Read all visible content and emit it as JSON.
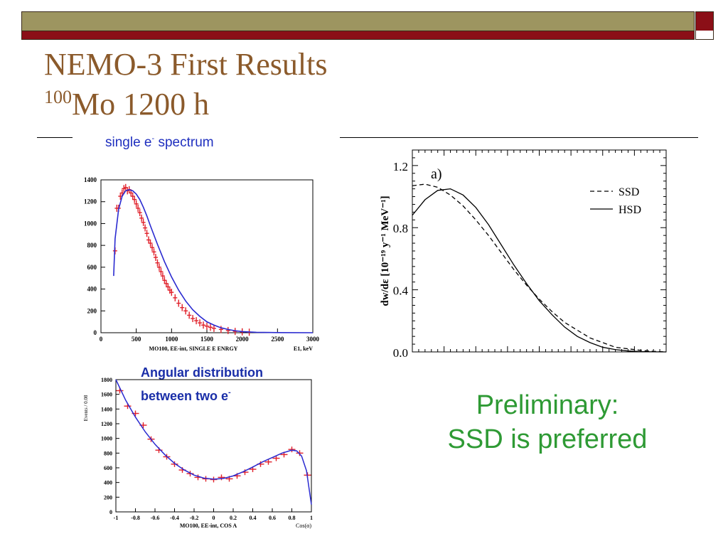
{
  "slide": {
    "title_line1": "NEMO-3 First Results",
    "title_sup": "100",
    "title_line2_rest": "Mo 1200 h",
    "label_single": "single e",
    "label_single_sup": "-",
    "label_single_rest": " spectrum",
    "label_angular_line1": "Angular distribution",
    "label_angular_line2": "between two e",
    "label_angular_sup": "-",
    "preliminary_line1": "Preliminary:",
    "preliminary_line2": "SSD is preferred",
    "colors": {
      "title": "#8b5a2b",
      "bar_olive": "#9d9560",
      "bar_red": "#8b0f17",
      "blue_label": "#1f2fbf",
      "green": "#2e9a34"
    }
  },
  "chart_data": [
    {
      "type": "scatter",
      "name": "single-electron-energy",
      "xlabel": "MO100, EE-int, SINGLE E ENRGY",
      "xlabel_right": "E1, keV",
      "xlim": [
        0,
        3000
      ],
      "ylim": [
        0,
        1400
      ],
      "xticks": [
        0,
        500,
        1000,
        1500,
        2000,
        2500,
        3000
      ],
      "yticks": [
        0,
        200,
        400,
        600,
        800,
        1000,
        1200,
        1400
      ],
      "data_points": {
        "x": [
          200,
          225,
          250,
          275,
          300,
          325,
          350,
          375,
          400,
          425,
          450,
          475,
          500,
          525,
          550,
          575,
          600,
          625,
          650,
          675,
          700,
          725,
          750,
          775,
          800,
          825,
          850,
          875,
          900,
          925,
          950,
          975,
          1000,
          1050,
          1100,
          1150,
          1200,
          1250,
          1300,
          1350,
          1400,
          1450,
          1500,
          1550,
          1600,
          1700,
          1800,
          1900,
          2000,
          2100
        ],
        "y": [
          750,
          1140,
          1140,
          1250,
          1280,
          1320,
          1330,
          1300,
          1310,
          1280,
          1250,
          1220,
          1180,
          1140,
          1100,
          1050,
          1010,
          960,
          910,
          850,
          820,
          780,
          740,
          690,
          640,
          600,
          560,
          520,
          480,
          450,
          420,
          390,
          370,
          320,
          270,
          230,
          200,
          160,
          130,
          110,
          90,
          70,
          60,
          50,
          40,
          30,
          20,
          12,
          8,
          5
        ]
      },
      "model_curve": {
        "x": [
          180,
          200,
          250,
          300,
          350,
          400,
          450,
          500,
          550,
          600,
          650,
          700,
          800,
          900,
          1000,
          1100,
          1200,
          1300,
          1400,
          1500,
          1600,
          1700,
          1800,
          1900,
          2000,
          2200,
          2500,
          3000
        ],
        "y": [
          520,
          860,
          1130,
          1250,
          1300,
          1310,
          1300,
          1270,
          1220,
          1150,
          1070,
          980,
          810,
          650,
          510,
          390,
          290,
          210,
          150,
          100,
          70,
          45,
          30,
          18,
          10,
          4,
          1,
          0
        ]
      }
    },
    {
      "type": "scatter",
      "name": "angular-distribution",
      "xlabel": "MO100, EE-int, COS A",
      "xlabel_right": "Cos(α)",
      "ylabel": "Events / 0.08",
      "xlim": [
        -1,
        1
      ],
      "ylim": [
        0,
        1800
      ],
      "xticks": [
        -1,
        -0.8,
        -0.6,
        -0.4,
        -0.2,
        0,
        0.2,
        0.4,
        0.6,
        0.8,
        1
      ],
      "yticks": [
        0,
        200,
        400,
        600,
        800,
        1000,
        1200,
        1400,
        1600,
        1800
      ],
      "data_points": {
        "x": [
          -0.96,
          -0.88,
          -0.8,
          -0.72,
          -0.64,
          -0.56,
          -0.48,
          -0.4,
          -0.32,
          -0.24,
          -0.16,
          -0.08,
          0.0,
          0.08,
          0.16,
          0.24,
          0.32,
          0.4,
          0.48,
          0.56,
          0.64,
          0.72,
          0.8,
          0.88,
          0.96
        ],
        "y": [
          1650,
          1440,
          1340,
          1180,
          990,
          840,
          750,
          650,
          570,
          520,
          470,
          450,
          440,
          470,
          450,
          490,
          540,
          580,
          650,
          680,
          730,
          780,
          850,
          800,
          500
        ]
      },
      "model_curve": {
        "x": [
          -1,
          -0.9,
          -0.8,
          -0.7,
          -0.6,
          -0.5,
          -0.4,
          -0.3,
          -0.2,
          -0.1,
          0.0,
          0.1,
          0.2,
          0.3,
          0.4,
          0.5,
          0.6,
          0.7,
          0.8,
          0.85,
          0.9,
          0.95,
          1.0
        ],
        "y": [
          1800,
          1520,
          1290,
          1090,
          920,
          780,
          660,
          570,
          500,
          460,
          445,
          455,
          490,
          545,
          610,
          680,
          740,
          800,
          840,
          830,
          760,
          560,
          100
        ]
      }
    },
    {
      "type": "line",
      "name": "theory-ssd-hsd",
      "panel_label": "a)",
      "ylabel": "dw/dε [10⁻¹⁹ y⁻¹ MeV⁻¹]",
      "xlim": [
        0,
        1
      ],
      "ylim": [
        0,
        1.3
      ],
      "yticks": [
        0.0,
        0.4,
        0.8,
        1.2
      ],
      "yticklabels": [
        "0.0",
        "0.4",
        "0.8",
        "1.2"
      ],
      "legend_position": "top-right",
      "series": [
        {
          "name": "SSD",
          "style": "dashed",
          "x": [
            0,
            0.05,
            0.1,
            0.15,
            0.2,
            0.25,
            0.3,
            0.35,
            0.4,
            0.45,
            0.5,
            0.55,
            0.6,
            0.65,
            0.7,
            0.75,
            0.8,
            0.85,
            0.9,
            0.95,
            1.0
          ],
          "y": [
            1.07,
            1.08,
            1.06,
            1.01,
            0.94,
            0.85,
            0.75,
            0.64,
            0.53,
            0.43,
            0.34,
            0.26,
            0.19,
            0.14,
            0.09,
            0.06,
            0.03,
            0.02,
            0.01,
            0.004,
            0.0
          ]
        },
        {
          "name": "HSD",
          "style": "solid",
          "x": [
            0,
            0.05,
            0.1,
            0.15,
            0.2,
            0.25,
            0.3,
            0.35,
            0.4,
            0.45,
            0.5,
            0.55,
            0.6,
            0.65,
            0.7,
            0.75,
            0.8,
            0.85,
            0.9,
            0.95,
            1.0
          ],
          "y": [
            0.88,
            0.98,
            1.04,
            1.05,
            1.01,
            0.93,
            0.82,
            0.69,
            0.56,
            0.44,
            0.33,
            0.24,
            0.16,
            0.1,
            0.06,
            0.03,
            0.015,
            0.006,
            0.002,
            0.0005,
            0.0
          ]
        }
      ]
    }
  ]
}
